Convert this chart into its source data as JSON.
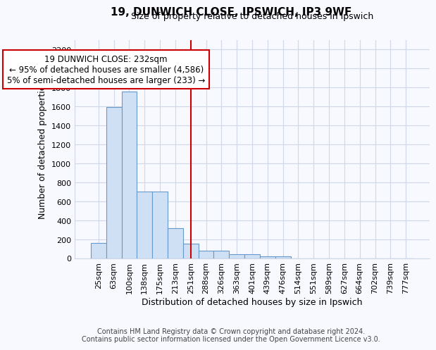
{
  "title": "19, DUNWICH CLOSE, IPSWICH, IP3 9WF",
  "subtitle": "Size of property relative to detached houses in Ipswich",
  "xlabel": "Distribution of detached houses by size in Ipswich",
  "ylabel": "Number of detached properties",
  "bar_color": "#cfe0f5",
  "bar_edge_color": "#6699cc",
  "categories": [
    "25sqm",
    "63sqm",
    "100sqm",
    "138sqm",
    "175sqm",
    "213sqm",
    "251sqm",
    "288sqm",
    "326sqm",
    "363sqm",
    "401sqm",
    "439sqm",
    "476sqm",
    "514sqm",
    "551sqm",
    "589sqm",
    "627sqm",
    "664sqm",
    "702sqm",
    "739sqm",
    "777sqm"
  ],
  "values": [
    160,
    1595,
    1755,
    705,
    705,
    318,
    158,
    85,
    85,
    48,
    48,
    25,
    20,
    0,
    0,
    0,
    0,
    0,
    0,
    0,
    0
  ],
  "ylim": [
    0,
    2300
  ],
  "yticks": [
    0,
    200,
    400,
    600,
    800,
    1000,
    1200,
    1400,
    1600,
    1800,
    2000,
    2200
  ],
  "red_line_x": 6.0,
  "annotation_text": "19 DUNWICH CLOSE: 232sqm\n← 95% of detached houses are smaller (4,586)\n5% of semi-detached houses are larger (233) →",
  "annotation_box_color": "#ffffff",
  "annotation_border_color": "#cc0000",
  "footer_line1": "Contains HM Land Registry data © Crown copyright and database right 2024.",
  "footer_line2": "Contains public sector information licensed under the Open Government Licence v3.0.",
  "bg_color": "#f8f8ff",
  "grid_color": "#d0d8e8",
  "title_fontsize": 11,
  "subtitle_fontsize": 9,
  "tick_fontsize": 8,
  "ylabel_fontsize": 9,
  "xlabel_fontsize": 9,
  "footer_fontsize": 7
}
